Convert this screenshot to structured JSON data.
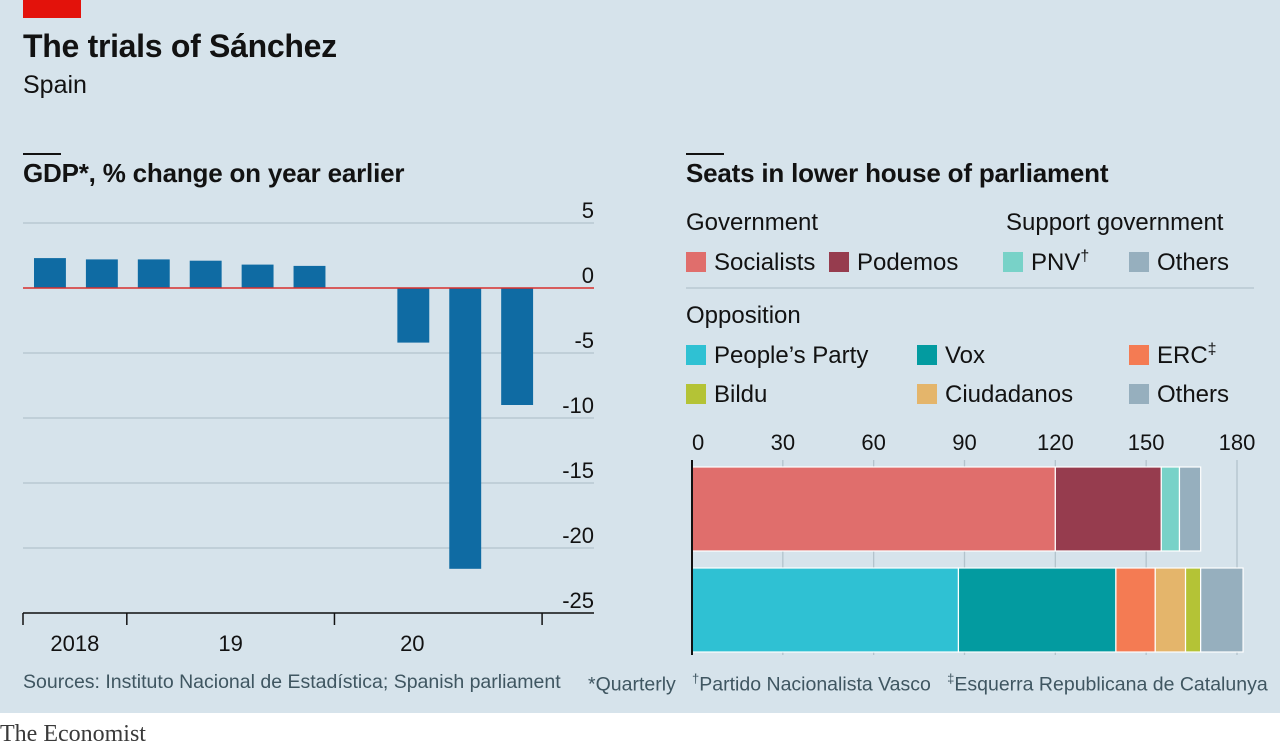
{
  "title": "The trials of Sánchez",
  "subtitle": "Spain",
  "sources": "Sources: Instituto Nacional de Estadística; Spanish parliament",
  "footnotes": {
    "quarterly": "*Quarterly",
    "pnv_mark": "†",
    "pnv": "Partido Nacionalista Vasco",
    "erc_mark": "‡",
    "erc": "Esquerra Republicana de Catalunya"
  },
  "brand": "The Economist",
  "colors": {
    "background": "#d6e3eb",
    "gdp_bar": "#0f6ba3",
    "zero_line": "#d7302c",
    "grid": "#b3c3cc",
    "Socialists": "#e06e6c",
    "Podemos": "#963c4e",
    "PNV": "#78d2c8",
    "Others": "#96afbe",
    "People's Party": "#2fc1d3",
    "Vox": "#039ba0",
    "ERC": "#f47b53",
    "Bildu": "#b4c336",
    "Ciudadanos": "#e4b56b"
  },
  "chart_data": [
    {
      "type": "bar",
      "title": "GDP*, % change on year earlier",
      "categories": [
        "2018 Q1",
        "2018 Q2",
        "2018 Q3",
        "2018 Q4",
        "2019 Q1",
        "2019 Q2",
        "2019 Q3",
        "2019 Q4",
        "2020 Q1",
        "2020 Q2",
        "2020 Q3"
      ],
      "values": [
        2.3,
        2.2,
        2.2,
        2.1,
        1.8,
        1.7,
        null,
        -4.2,
        -21.6,
        -9.0,
        null
      ],
      "ylim": [
        -25,
        5
      ],
      "yticks": [
        5,
        0,
        -5,
        -10,
        -15,
        -20,
        -25
      ],
      "xtick_labels": [
        "2018",
        "19",
        "20"
      ],
      "grid": true
    },
    {
      "type": "bar",
      "orientation": "horizontal",
      "stacked": true,
      "title": "Seats in lower house of parliament",
      "xlim": [
        0,
        180
      ],
      "xticks": [
        0,
        30,
        60,
        90,
        120,
        150,
        180
      ],
      "groups": [
        {
          "name": "Government",
          "legend_title": "Government",
          "support_title": "Support government",
          "segments": [
            {
              "name": "Socialists",
              "value": 120
            },
            {
              "name": "Podemos",
              "value": 35
            },
            {
              "name": "PNV",
              "label": "PNV",
              "mark": "†",
              "value": 6
            },
            {
              "name": "Others",
              "value": 7
            }
          ]
        },
        {
          "name": "Opposition",
          "legend_title": "Opposition",
          "segments": [
            {
              "name": "People's Party",
              "label": "People’s Party",
              "value": 88
            },
            {
              "name": "Vox",
              "value": 52
            },
            {
              "name": "ERC",
              "label": "ERC",
              "mark": "‡",
              "value": 13
            },
            {
              "name": "Ciudadanos",
              "value": 10
            },
            {
              "name": "Bildu",
              "value": 5
            },
            {
              "name": "Others",
              "value": 14
            }
          ]
        }
      ]
    }
  ]
}
